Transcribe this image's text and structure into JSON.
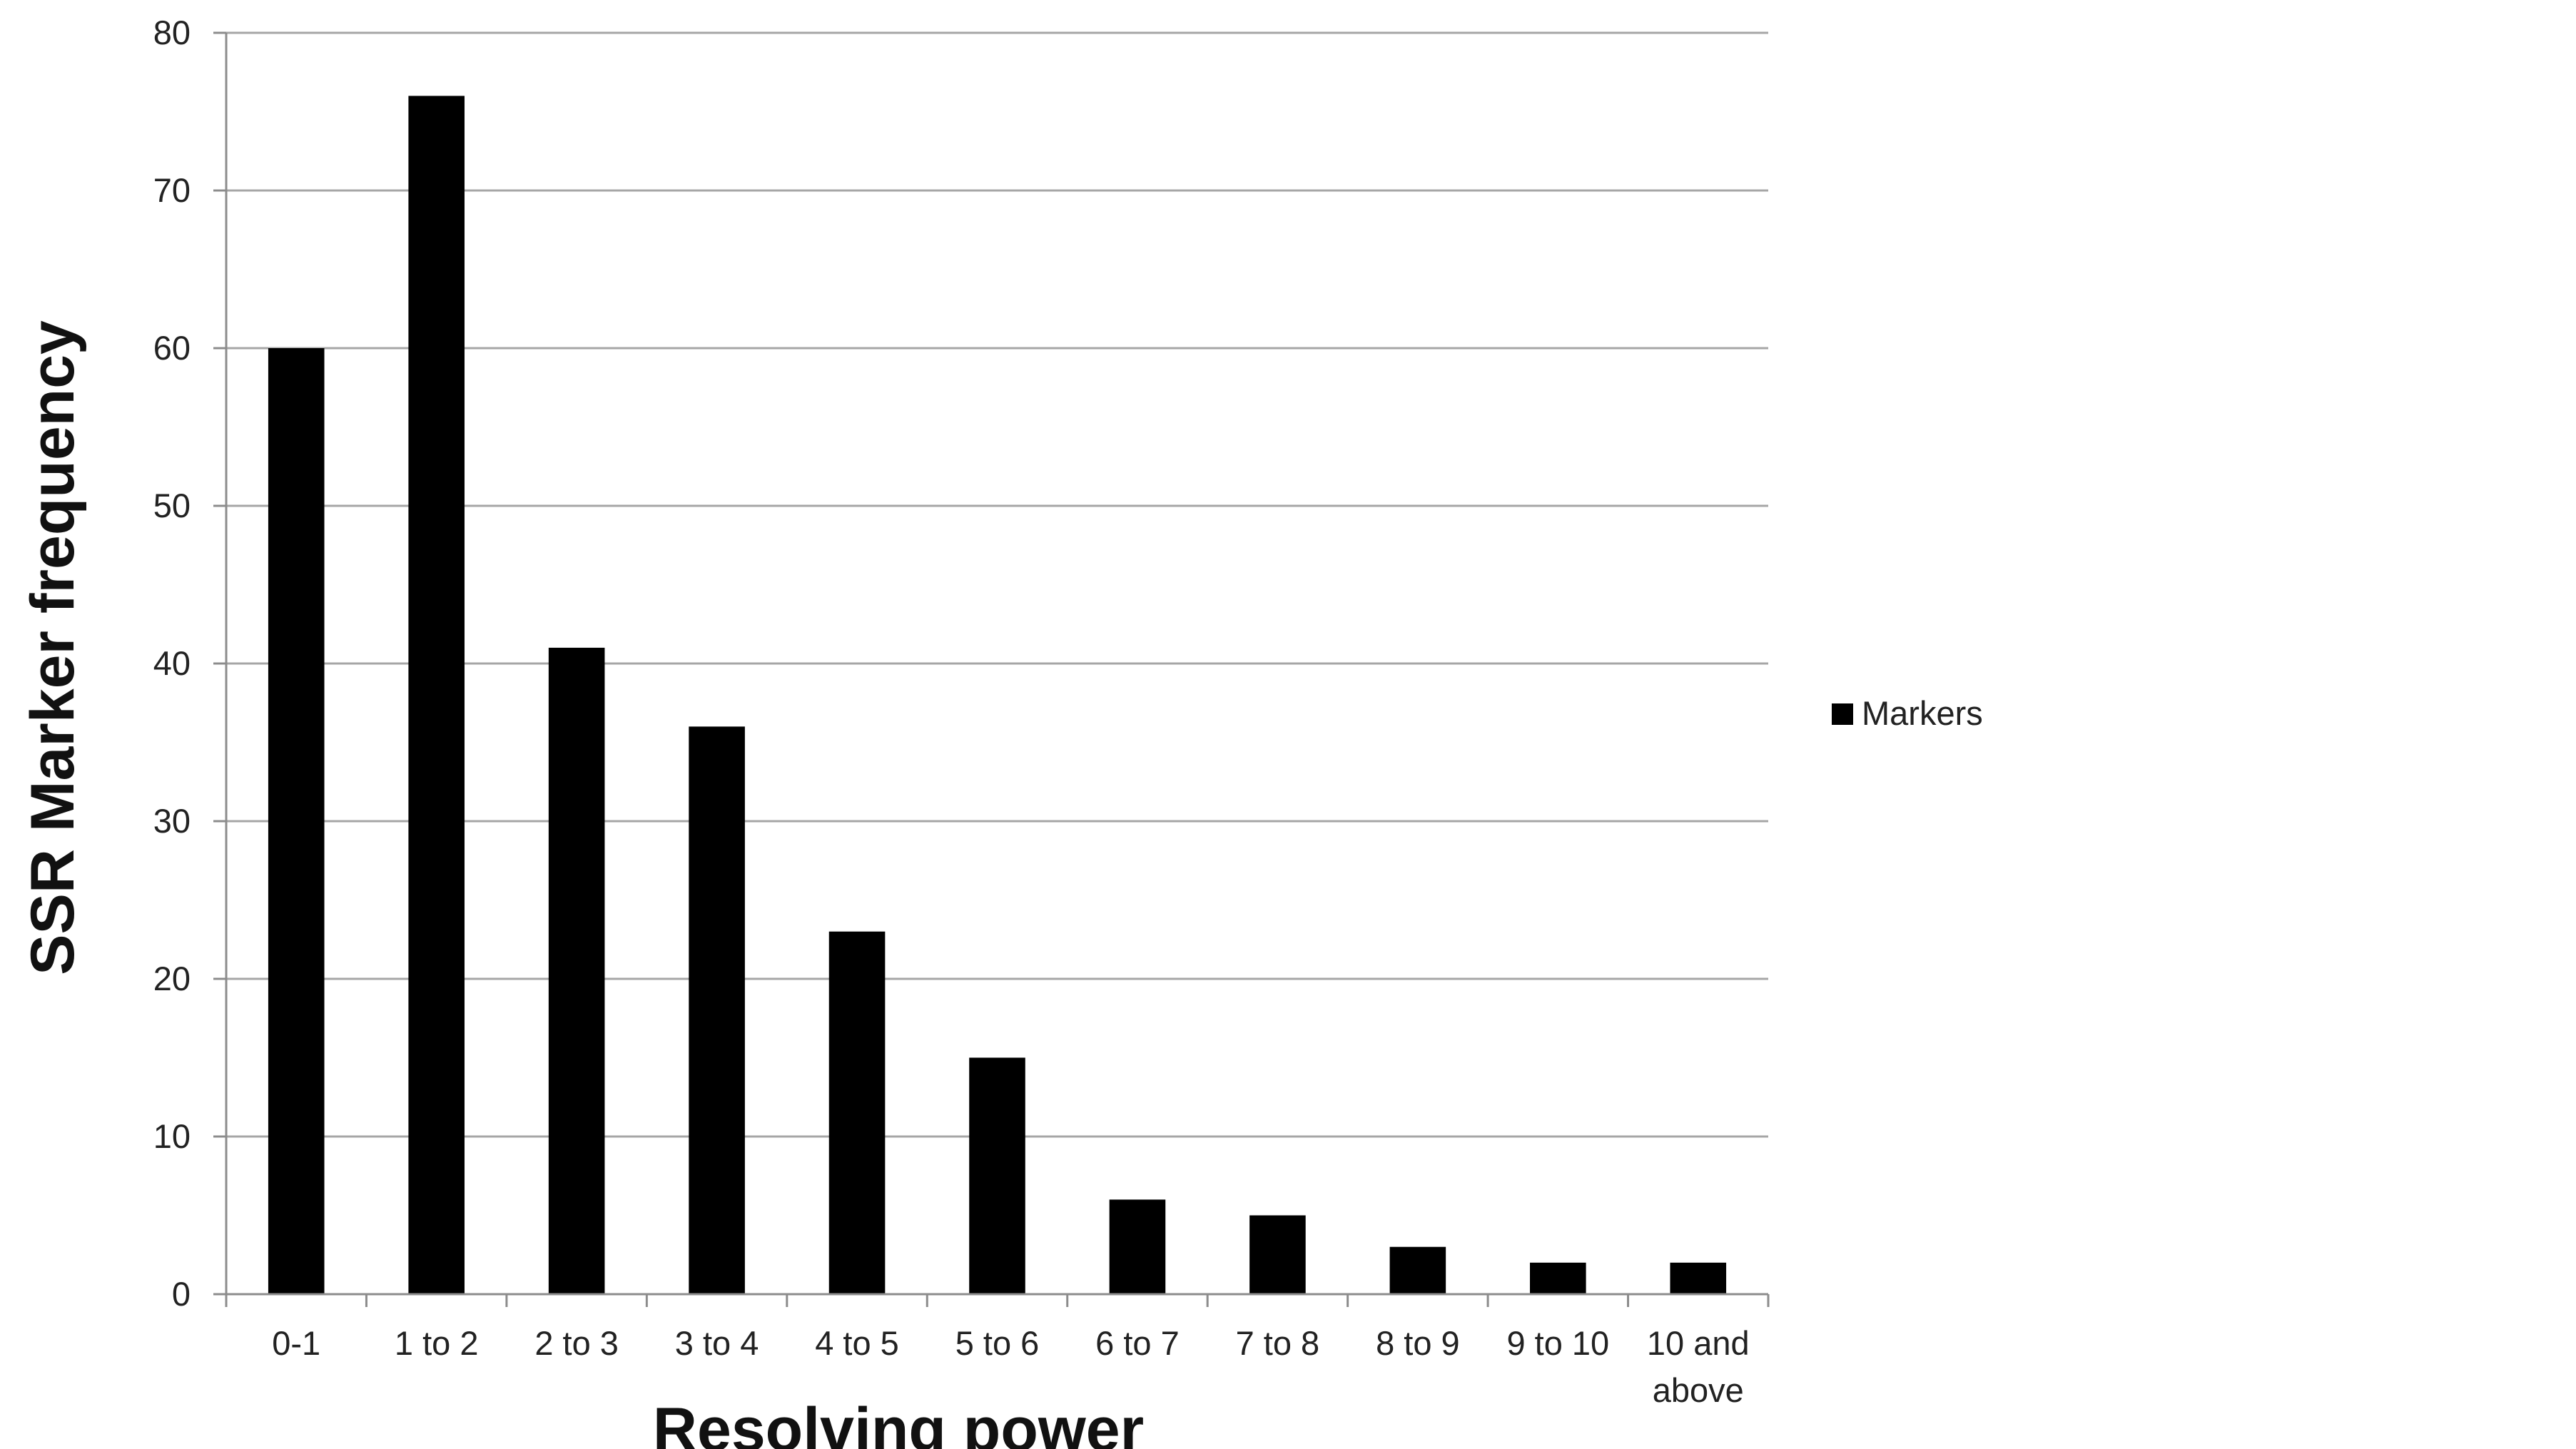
{
  "chart_data": {
    "type": "bar",
    "categories": [
      "0-1",
      "1 to 2",
      "2 to 3",
      "3 to 4",
      "4 to 5",
      "5 to 6",
      "6 to 7",
      "7 to 8",
      "8 to 9",
      "9 to 10",
      "10 and above"
    ],
    "series": [
      {
        "name": "Markers",
        "values": [
          60,
          76,
          41,
          36,
          23,
          15,
          6,
          5,
          3,
          2,
          2
        ],
        "color": "#000000"
      }
    ],
    "xlabel": "Resolving power",
    "ylabel": "SSR Marker frequency",
    "ylim": [
      0,
      80
    ],
    "yticks": [
      0,
      10,
      20,
      30,
      40,
      50,
      60,
      70,
      80
    ],
    "grid": true,
    "legend": "right",
    "colors": {
      "gridline": "#a6a6a6",
      "axis": "#8c8c8c",
      "bar": "#000000"
    }
  }
}
